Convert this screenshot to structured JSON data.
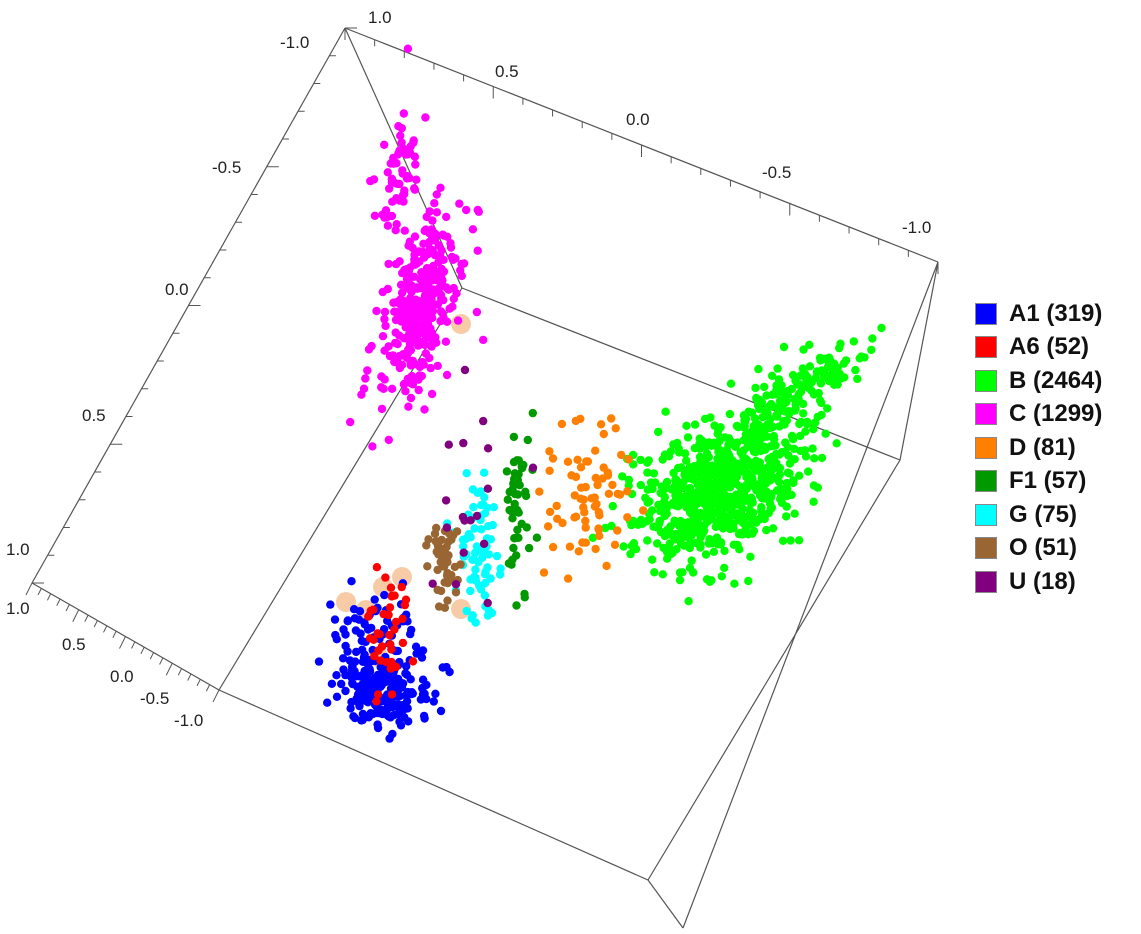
{
  "chart_data": {
    "type": "scatter",
    "projection": "3d",
    "box_range": [
      -1.0,
      1.0
    ],
    "axes": {
      "top": {
        "ticks": [
          "1.0",
          "0.5",
          "0.0",
          "-0.5",
          "-1.0"
        ]
      },
      "left_vertical": {
        "ticks": [
          "-1.0",
          "-0.5",
          "0.0",
          "0.5",
          "1.0"
        ]
      },
      "bottom_left": {
        "ticks": [
          "1.0",
          "0.5",
          "0.0",
          "-0.5",
          "-1.0"
        ]
      }
    },
    "legend_position": "right",
    "series": [
      {
        "name": "A1 (319)",
        "color": "#0000ff",
        "count": 319
      },
      {
        "name": "A6 (52)",
        "color": "#ff0000",
        "count": 52
      },
      {
        "name": "B (2464)",
        "color": "#00ff00",
        "count": 2464
      },
      {
        "name": "C (1299)",
        "color": "#ff00ff",
        "count": 1299
      },
      {
        "name": "D (81)",
        "color": "#ff8000",
        "count": 81
      },
      {
        "name": "F1 (57)",
        "color": "#009900",
        "count": 57
      },
      {
        "name": "G (75)",
        "color": "#00ffff",
        "count": 75
      },
      {
        "name": "O (51)",
        "color": "#996633",
        "count": 51
      },
      {
        "name": "U (18)",
        "color": "#800080",
        "count": 18
      }
    ]
  }
}
